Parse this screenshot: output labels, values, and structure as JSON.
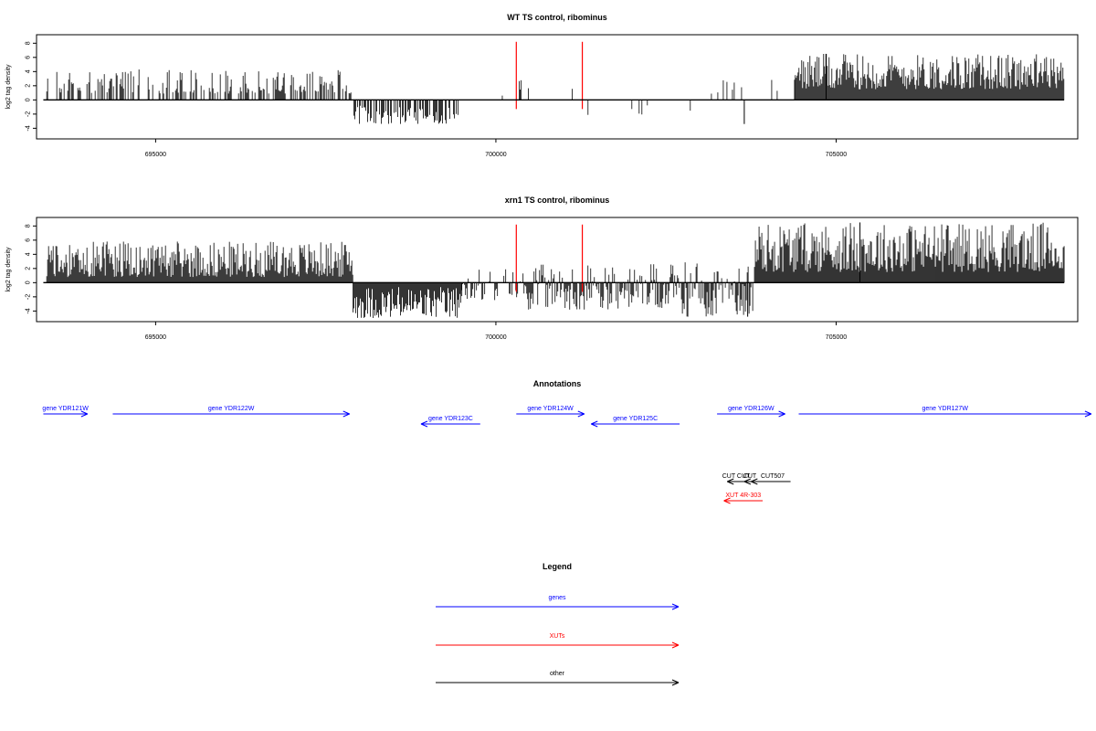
{
  "colors": {
    "gene": "#0000ff",
    "xut": "#ff0000",
    "other": "#000000",
    "marker": "#ff0000",
    "signal": "#000000"
  },
  "chart_data": [
    {
      "type": "bar",
      "panel": "wt",
      "title": "WT TS control, ribominus",
      "ylabel": "log2 tag density",
      "xlim": [
        693250,
        708550
      ],
      "ylim": [
        -5.5,
        9.2
      ],
      "yticks": [
        -4,
        -2,
        0,
        2,
        4,
        6,
        8
      ],
      "xticks": [
        695000,
        700000,
        705000
      ],
      "x_range_data": [
        693350,
        708350
      ],
      "markers_x": [
        700300,
        701270
      ],
      "marker_height": 8.2,
      "regions": [
        {
          "from": 693400,
          "to": 697900,
          "density": 0.45,
          "min": 0.9,
          "max": 4.3
        },
        {
          "from": 697900,
          "to": 699450,
          "density": 0.55,
          "min": -3.4,
          "max": -0.8
        },
        {
          "from": 699450,
          "to": 700100,
          "density": 0.04,
          "min": -1.0,
          "max": 1.0
        },
        {
          "from": 700100,
          "to": 701300,
          "density": 0.06,
          "min": 1.0,
          "max": 3.0
        },
        {
          "from": 701300,
          "to": 703100,
          "density": 0.05,
          "min": -2.2,
          "max": -0.5
        },
        {
          "from": 703100,
          "to": 704400,
          "density": 0.06,
          "min": 0.8,
          "max": 3.0
        },
        {
          "from": 704400,
          "to": 708350,
          "density": 1.2,
          "min": 1.5,
          "max": 6.5
        }
      ],
      "spikes": [
        {
          "x": 703650,
          "y": -3.4
        },
        {
          "x": 704850,
          "y": 6.5
        }
      ]
    },
    {
      "type": "bar",
      "panel": "xrn1",
      "title": "xrn1 TS control, ribominus",
      "ylabel": "log2 tag density",
      "xlim": [
        693250,
        708550
      ],
      "ylim": [
        -5.5,
        9.2
      ],
      "yticks": [
        -4,
        -2,
        0,
        2,
        4,
        6,
        8
      ],
      "xticks": [
        695000,
        700000,
        705000
      ],
      "x_range_data": [
        693350,
        708350
      ],
      "markers_x": [
        700300,
        701270
      ],
      "marker_height": 8.2,
      "regions": [
        {
          "from": 693400,
          "to": 697900,
          "density": 1.3,
          "min": 0.8,
          "max": 5.8
        },
        {
          "from": 697900,
          "to": 699500,
          "density": 1.4,
          "min": -5.0,
          "max": -0.5
        },
        {
          "from": 699500,
          "to": 700400,
          "density": 0.6,
          "min": -2.5,
          "max": 2.5
        },
        {
          "from": 700400,
          "to": 702700,
          "density": 0.9,
          "min": -3.8,
          "max": 2.6
        },
        {
          "from": 702700,
          "to": 703800,
          "density": 0.7,
          "min": -4.8,
          "max": 3.0
        },
        {
          "from": 703800,
          "to": 708350,
          "density": 1.5,
          "min": 1.5,
          "max": 8.5
        }
      ],
      "spikes": [
        {
          "x": 705350,
          "y": 8.5
        },
        {
          "x": 703700,
          "y": -4.8
        }
      ]
    }
  ],
  "annotations": {
    "title": "Annotations",
    "features": [
      {
        "label": "gene YDR121W",
        "type": "gene",
        "start": 693350,
        "end": 694000,
        "strand": "+",
        "row": 0
      },
      {
        "label": "gene YDR122W",
        "type": "gene",
        "start": 694370,
        "end": 697850,
        "strand": "+",
        "row": 0
      },
      {
        "label": "gene YDR123C",
        "type": "gene",
        "start": 698900,
        "end": 699770,
        "strand": "-",
        "row": 1
      },
      {
        "label": "gene YDR124W",
        "type": "gene",
        "start": 700300,
        "end": 701300,
        "strand": "+",
        "row": 0
      },
      {
        "label": "gene YDR125C",
        "type": "gene",
        "start": 701400,
        "end": 702700,
        "strand": "-",
        "row": 1
      },
      {
        "label": "gene YDR126W",
        "type": "gene",
        "start": 703250,
        "end": 704250,
        "strand": "+",
        "row": 0
      },
      {
        "label": "gene YDR127W",
        "type": "gene",
        "start": 704450,
        "end": 708750,
        "strand": "+",
        "row": 0
      },
      {
        "label": "CUT CUT",
        "type": "other",
        "start": 703400,
        "end": 704050,
        "strand": "-",
        "row": 2
      },
      {
        "label": "CUT",
        "type": "other",
        "start": 703650,
        "end": 704100,
        "strand": "-",
        "row": 2
      },
      {
        "label": "CUT507",
        "type": "other",
        "start": 703750,
        "end": 704330,
        "strand": "-",
        "row": 2
      },
      {
        "label": "XUT 4R-303",
        "type": "xut",
        "start": 703350,
        "end": 703920,
        "strand": "-",
        "row": 3
      }
    ]
  },
  "legend": {
    "title": "Legend",
    "entries": [
      {
        "label": "genes",
        "type": "gene"
      },
      {
        "label": "XUTs",
        "type": "xut"
      },
      {
        "label": "other",
        "type": "other"
      }
    ]
  }
}
